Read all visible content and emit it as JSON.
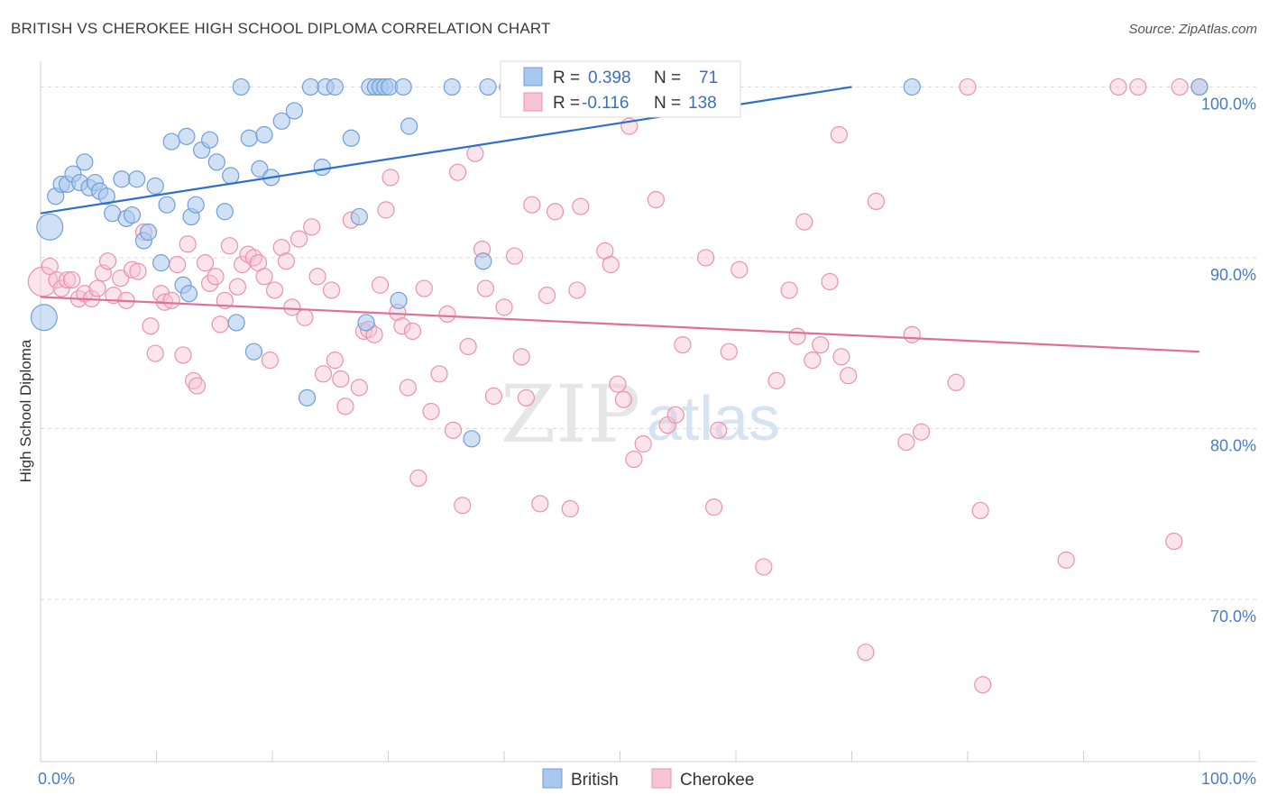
{
  "header": {
    "title": "BRITISH VS CHEROKEE HIGH SCHOOL DIPLOMA CORRELATION CHART",
    "source": "Source: ZipAtlas.com"
  },
  "watermark": {
    "zip": "ZIP",
    "atlas": "atlas"
  },
  "colors": {
    "british_fill": "#a9c8ee",
    "british_stroke": "#6f9fd8",
    "british_line": "#2e6fcc",
    "cherokee_fill": "#f7c4d3",
    "cherokee_stroke": "#ea93ad",
    "cherokee_line": "#e0709a",
    "tick_text": "#4a7cc4"
  },
  "legend": {
    "british": {
      "r_label": "R =",
      "r_value": "0.398",
      "n_label": "N =",
      "n_value": "71"
    },
    "cherokee": {
      "r_label": "R =",
      "r_value": "-0.116",
      "n_label": "N =",
      "n_value": "138"
    }
  },
  "chart_data": {
    "type": "scatter",
    "title": "BRITISH VS CHEROKEE HIGH SCHOOL DIPLOMA CORRELATION CHART",
    "xlabel": "",
    "ylabel": "High School Diploma",
    "xlim": [
      0,
      100
    ],
    "ylim": [
      60.5,
      101.5
    ],
    "x_ticks": [
      {
        "value": 0,
        "label": "0.0%"
      },
      {
        "value": 100,
        "label": "100.0%"
      }
    ],
    "y_ticks": [
      {
        "value": 70,
        "label": "70.0%"
      },
      {
        "value": 80,
        "label": "80.0%"
      },
      {
        "value": 90,
        "label": "90.0%"
      },
      {
        "value": 100,
        "label": "100.0%"
      }
    ],
    "x_minor_ticks": [
      0,
      10,
      20,
      30,
      40,
      50,
      60,
      70,
      80,
      90,
      100
    ],
    "series": [
      {
        "name": "British",
        "color": "#6f9fd8",
        "trend": {
          "x": [
            0,
            70
          ],
          "y": [
            92.6,
            100
          ]
        },
        "points": [
          {
            "x": 0.3,
            "y": 86.5,
            "s": 1.6
          },
          {
            "x": 0.8,
            "y": 91.8,
            "s": 1.6
          },
          {
            "x": 1.3,
            "y": 93.6
          },
          {
            "x": 1.8,
            "y": 94.3
          },
          {
            "x": 2.3,
            "y": 94.3
          },
          {
            "x": 2.8,
            "y": 94.9
          },
          {
            "x": 3.4,
            "y": 94.4
          },
          {
            "x": 3.8,
            "y": 95.6
          },
          {
            "x": 4.2,
            "y": 94.1
          },
          {
            "x": 4.7,
            "y": 94.4
          },
          {
            "x": 5.1,
            "y": 93.9
          },
          {
            "x": 5.7,
            "y": 93.6
          },
          {
            "x": 6.2,
            "y": 92.6
          },
          {
            "x": 7.0,
            "y": 94.6
          },
          {
            "x": 7.4,
            "y": 92.3
          },
          {
            "x": 7.9,
            "y": 92.5
          },
          {
            "x": 8.3,
            "y": 94.6
          },
          {
            "x": 8.9,
            "y": 91.0
          },
          {
            "x": 9.3,
            "y": 91.5
          },
          {
            "x": 9.9,
            "y": 94.2
          },
          {
            "x": 10.4,
            "y": 89.7
          },
          {
            "x": 10.9,
            "y": 93.1
          },
          {
            "x": 11.3,
            "y": 96.8
          },
          {
            "x": 12.3,
            "y": 88.4
          },
          {
            "x": 12.6,
            "y": 97.1
          },
          {
            "x": 12.8,
            "y": 87.9
          },
          {
            "x": 13.0,
            "y": 92.4
          },
          {
            "x": 13.4,
            "y": 93.1
          },
          {
            "x": 13.9,
            "y": 96.3
          },
          {
            "x": 14.6,
            "y": 96.9
          },
          {
            "x": 15.2,
            "y": 95.6
          },
          {
            "x": 15.9,
            "y": 92.7
          },
          {
            "x": 16.4,
            "y": 94.8
          },
          {
            "x": 16.9,
            "y": 86.2
          },
          {
            "x": 17.3,
            "y": 100
          },
          {
            "x": 18.0,
            "y": 97.0
          },
          {
            "x": 18.4,
            "y": 84.5
          },
          {
            "x": 18.9,
            "y": 95.2
          },
          {
            "x": 19.3,
            "y": 97.2
          },
          {
            "x": 19.9,
            "y": 94.7
          },
          {
            "x": 20.8,
            "y": 98.0
          },
          {
            "x": 21.9,
            "y": 98.6
          },
          {
            "x": 23.0,
            "y": 81.8
          },
          {
            "x": 23.3,
            "y": 100
          },
          {
            "x": 24.3,
            "y": 95.3
          },
          {
            "x": 24.6,
            "y": 100
          },
          {
            "x": 25.4,
            "y": 100
          },
          {
            "x": 26.8,
            "y": 97.0
          },
          {
            "x": 27.5,
            "y": 92.4
          },
          {
            "x": 28.1,
            "y": 86.2
          },
          {
            "x": 28.4,
            "y": 100
          },
          {
            "x": 28.9,
            "y": 100
          },
          {
            "x": 29.3,
            "y": 100
          },
          {
            "x": 29.7,
            "y": 100
          },
          {
            "x": 30.1,
            "y": 100
          },
          {
            "x": 30.9,
            "y": 87.5
          },
          {
            "x": 31.3,
            "y": 100
          },
          {
            "x": 31.8,
            "y": 97.7
          },
          {
            "x": 35.5,
            "y": 100
          },
          {
            "x": 37.2,
            "y": 79.4
          },
          {
            "x": 38.2,
            "y": 89.8
          },
          {
            "x": 38.6,
            "y": 100
          },
          {
            "x": 40.3,
            "y": 100
          },
          {
            "x": 41.6,
            "y": 100
          },
          {
            "x": 42.8,
            "y": 100
          },
          {
            "x": 43.7,
            "y": 100
          },
          {
            "x": 45.0,
            "y": 100
          },
          {
            "x": 75.2,
            "y": 100
          },
          {
            "x": 100,
            "y": 100
          }
        ]
      },
      {
        "name": "Cherokee",
        "color": "#ea93ad",
        "trend": {
          "x": [
            0,
            100
          ],
          "y": [
            87.7,
            84.5
          ]
        },
        "points": [
          {
            "x": 0.2,
            "y": 88.6,
            "s": 1.8
          },
          {
            "x": 0.8,
            "y": 89.5
          },
          {
            "x": 1.4,
            "y": 88.7
          },
          {
            "x": 1.8,
            "y": 88.2
          },
          {
            "x": 2.3,
            "y": 88.7
          },
          {
            "x": 2.7,
            "y": 88.7
          },
          {
            "x": 3.3,
            "y": 87.6
          },
          {
            "x": 3.8,
            "y": 87.9
          },
          {
            "x": 4.4,
            "y": 87.6
          },
          {
            "x": 4.9,
            "y": 88.2
          },
          {
            "x": 5.4,
            "y": 89.1
          },
          {
            "x": 5.8,
            "y": 89.8
          },
          {
            "x": 6.3,
            "y": 87.8
          },
          {
            "x": 6.9,
            "y": 88.8
          },
          {
            "x": 7.4,
            "y": 87.5
          },
          {
            "x": 7.9,
            "y": 89.3
          },
          {
            "x": 8.4,
            "y": 89.2
          },
          {
            "x": 8.9,
            "y": 91.5
          },
          {
            "x": 9.5,
            "y": 86.0
          },
          {
            "x": 9.9,
            "y": 84.4
          },
          {
            "x": 10.4,
            "y": 87.9
          },
          {
            "x": 10.7,
            "y": 87.4
          },
          {
            "x": 11.3,
            "y": 87.5
          },
          {
            "x": 11.8,
            "y": 89.6
          },
          {
            "x": 12.3,
            "y": 84.3
          },
          {
            "x": 12.7,
            "y": 90.8
          },
          {
            "x": 13.2,
            "y": 82.8
          },
          {
            "x": 13.5,
            "y": 82.5
          },
          {
            "x": 14.2,
            "y": 89.7
          },
          {
            "x": 14.6,
            "y": 88.5
          },
          {
            "x": 15.1,
            "y": 88.9
          },
          {
            "x": 15.5,
            "y": 86.1
          },
          {
            "x": 15.9,
            "y": 87.5
          },
          {
            "x": 16.3,
            "y": 90.7
          },
          {
            "x": 17.0,
            "y": 88.3
          },
          {
            "x": 17.4,
            "y": 89.6
          },
          {
            "x": 17.9,
            "y": 90.2
          },
          {
            "x": 18.4,
            "y": 90.0
          },
          {
            "x": 18.8,
            "y": 89.7
          },
          {
            "x": 19.3,
            "y": 88.9
          },
          {
            "x": 19.8,
            "y": 84.0
          },
          {
            "x": 20.2,
            "y": 88.1
          },
          {
            "x": 20.8,
            "y": 90.6
          },
          {
            "x": 21.2,
            "y": 89.8
          },
          {
            "x": 21.7,
            "y": 87.1
          },
          {
            "x": 22.3,
            "y": 91.1
          },
          {
            "x": 22.8,
            "y": 86.5
          },
          {
            "x": 23.4,
            "y": 91.8
          },
          {
            "x": 23.9,
            "y": 88.9
          },
          {
            "x": 24.4,
            "y": 83.2
          },
          {
            "x": 25.1,
            "y": 88.1
          },
          {
            "x": 25.4,
            "y": 84.0
          },
          {
            "x": 25.9,
            "y": 82.9
          },
          {
            "x": 26.3,
            "y": 81.3
          },
          {
            "x": 26.8,
            "y": 92.2
          },
          {
            "x": 27.5,
            "y": 82.4
          },
          {
            "x": 27.9,
            "y": 85.7
          },
          {
            "x": 28.3,
            "y": 85.8
          },
          {
            "x": 28.8,
            "y": 85.5
          },
          {
            "x": 29.3,
            "y": 88.4
          },
          {
            "x": 29.8,
            "y": 92.8
          },
          {
            "x": 30.2,
            "y": 94.7
          },
          {
            "x": 30.8,
            "y": 86.8
          },
          {
            "x": 31.2,
            "y": 86.0
          },
          {
            "x": 31.7,
            "y": 82.4
          },
          {
            "x": 32.1,
            "y": 85.7
          },
          {
            "x": 32.6,
            "y": 77.1
          },
          {
            "x": 33.1,
            "y": 88.2
          },
          {
            "x": 33.7,
            "y": 81.0
          },
          {
            "x": 34.4,
            "y": 83.2
          },
          {
            "x": 35.1,
            "y": 86.7
          },
          {
            "x": 35.6,
            "y": 79.9
          },
          {
            "x": 36.0,
            "y": 95.0
          },
          {
            "x": 36.4,
            "y": 75.5
          },
          {
            "x": 36.9,
            "y": 84.8
          },
          {
            "x": 37.5,
            "y": 96.1
          },
          {
            "x": 38.1,
            "y": 90.5
          },
          {
            "x": 38.4,
            "y": 88.2
          },
          {
            "x": 39.1,
            "y": 81.9
          },
          {
            "x": 40.0,
            "y": 87.1
          },
          {
            "x": 40.9,
            "y": 90.1
          },
          {
            "x": 41.5,
            "y": 84.2
          },
          {
            "x": 41.9,
            "y": 81.8
          },
          {
            "x": 42.4,
            "y": 93.1
          },
          {
            "x": 43.1,
            "y": 75.6
          },
          {
            "x": 43.7,
            "y": 87.8
          },
          {
            "x": 44.4,
            "y": 92.7
          },
          {
            "x": 45.2,
            "y": 100
          },
          {
            "x": 45.7,
            "y": 75.3
          },
          {
            "x": 46.3,
            "y": 88.1
          },
          {
            "x": 46.6,
            "y": 93.0
          },
          {
            "x": 48.1,
            "y": 100
          },
          {
            "x": 48.7,
            "y": 90.4
          },
          {
            "x": 49.2,
            "y": 89.6
          },
          {
            "x": 49.8,
            "y": 82.6
          },
          {
            "x": 50.3,
            "y": 81.7
          },
          {
            "x": 50.8,
            "y": 97.7
          },
          {
            "x": 51.2,
            "y": 78.2
          },
          {
            "x": 52.0,
            "y": 79.1
          },
          {
            "x": 52.6,
            "y": 100
          },
          {
            "x": 53.1,
            "y": 93.4
          },
          {
            "x": 54.1,
            "y": 80.2
          },
          {
            "x": 54.8,
            "y": 80.8
          },
          {
            "x": 55.4,
            "y": 84.9
          },
          {
            "x": 56.1,
            "y": 100
          },
          {
            "x": 57.4,
            "y": 90.0
          },
          {
            "x": 58.1,
            "y": 75.4
          },
          {
            "x": 58.5,
            "y": 79.9
          },
          {
            "x": 59.4,
            "y": 84.5
          },
          {
            "x": 60.3,
            "y": 89.3
          },
          {
            "x": 62.4,
            "y": 71.9
          },
          {
            "x": 63.5,
            "y": 82.8
          },
          {
            "x": 64.6,
            "y": 88.1
          },
          {
            "x": 65.3,
            "y": 85.4
          },
          {
            "x": 65.9,
            "y": 92.1
          },
          {
            "x": 66.6,
            "y": 84.0
          },
          {
            "x": 67.3,
            "y": 84.9
          },
          {
            "x": 68.1,
            "y": 88.6
          },
          {
            "x": 68.9,
            "y": 97.2
          },
          {
            "x": 69.1,
            "y": 84.2
          },
          {
            "x": 69.7,
            "y": 83.1
          },
          {
            "x": 71.2,
            "y": 66.9
          },
          {
            "x": 72.1,
            "y": 93.3
          },
          {
            "x": 74.7,
            "y": 79.2
          },
          {
            "x": 75.2,
            "y": 85.5
          },
          {
            "x": 76.0,
            "y": 79.8
          },
          {
            "x": 79.0,
            "y": 82.7
          },
          {
            "x": 80.0,
            "y": 100
          },
          {
            "x": 81.1,
            "y": 75.2
          },
          {
            "x": 81.3,
            "y": 65.0
          },
          {
            "x": 88.5,
            "y": 72.3
          },
          {
            "x": 93.0,
            "y": 100
          },
          {
            "x": 94.7,
            "y": 100
          },
          {
            "x": 97.8,
            "y": 73.4
          },
          {
            "x": 98.3,
            "y": 100
          },
          {
            "x": 100,
            "y": 100
          }
        ]
      }
    ],
    "legend_placement": "top-center",
    "grid": true
  }
}
